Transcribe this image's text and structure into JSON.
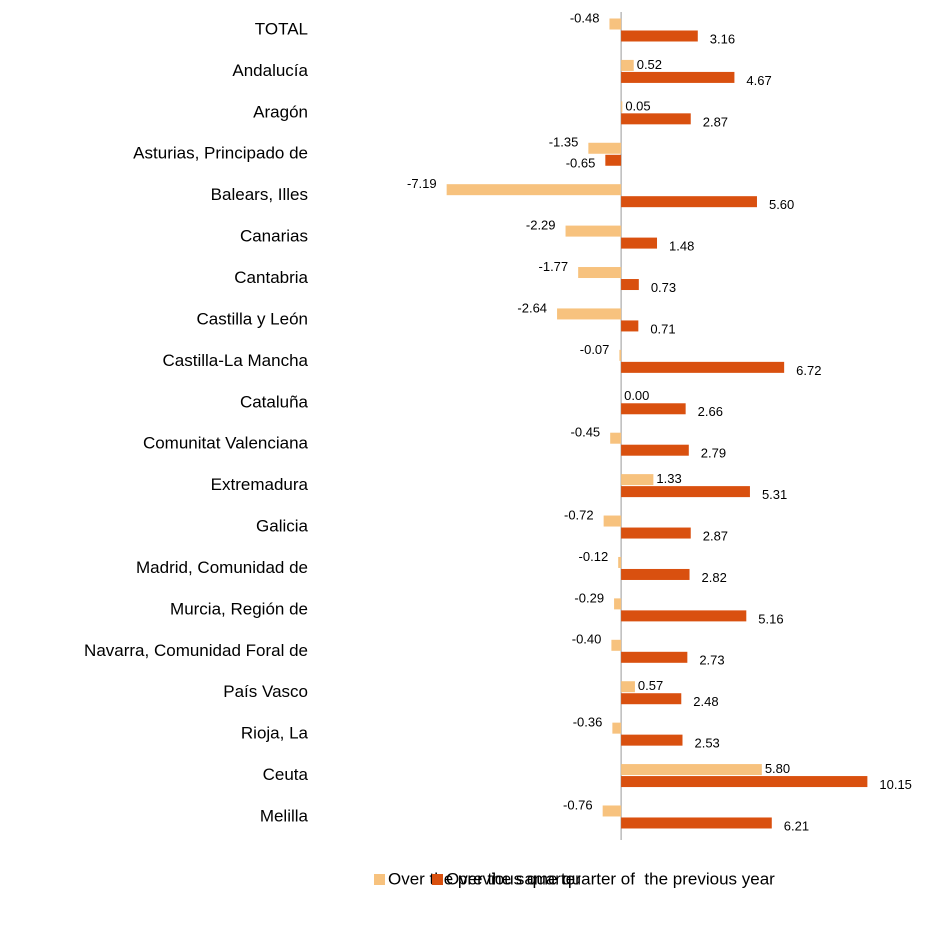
{
  "chart_data": {
    "type": "bar",
    "orientation": "horizontal",
    "categories": [
      "TOTAL",
      "Andalucía",
      "Aragón",
      "Asturias, Principado de",
      "Balears, Illes",
      "Canarias",
      "Cantabria",
      "Castilla y León",
      "Castilla-La Mancha",
      "Cataluña",
      "Comunitat Valenciana",
      "Extremadura",
      "Galicia",
      "Madrid, Comunidad de",
      "Murcia, Región de",
      "Navarra, Comunidad Foral de",
      "País Vasco",
      "Rioja, La",
      "Ceuta",
      "Melilla"
    ],
    "series": [
      {
        "name": "Over the previous quarter",
        "color": "#f7c27e",
        "values": [
          -0.48,
          0.52,
          0.05,
          -1.35,
          -7.19,
          -2.29,
          -1.77,
          -2.64,
          -0.07,
          0,
          -0.45,
          1.33,
          -0.72,
          -0.12,
          -0.29,
          -0.4,
          0.57,
          -0.36,
          5.8,
          -0.76
        ],
        "value_labels": [
          "-0.48",
          "0.52",
          "0.05",
          "-1.35",
          "-7.19",
          "-2.29",
          "-1.77",
          "-2.64",
          "-0.07",
          "0.00",
          "-0.45",
          "1.33",
          "-0.72",
          "-0.12",
          "-0.29",
          "-0.40",
          "0.57",
          "-0.36",
          "5.80",
          "-0.76"
        ]
      },
      {
        "name": "Over the same quarter of  the previous year",
        "color": "#d9500f",
        "values": [
          3.16,
          4.67,
          2.87,
          -0.65,
          5.6,
          1.48,
          0.73,
          0.71,
          6.72,
          2.66,
          2.79,
          5.31,
          2.87,
          2.82,
          5.16,
          2.73,
          2.48,
          2.53,
          10.15,
          6.21
        ],
        "value_labels": [
          "3.16",
          "4.67",
          "2.87",
          "-0.65",
          "5.60",
          "1.48",
          "0.73",
          "0.71",
          "6.72",
          "2.66",
          "2.79",
          "5.31",
          "2.87",
          "2.82",
          "5.16",
          "2.73",
          "2.48",
          "2.53",
          "10.15",
          "6.21"
        ]
      }
    ],
    "xlim": [
      -8,
      11
    ]
  }
}
